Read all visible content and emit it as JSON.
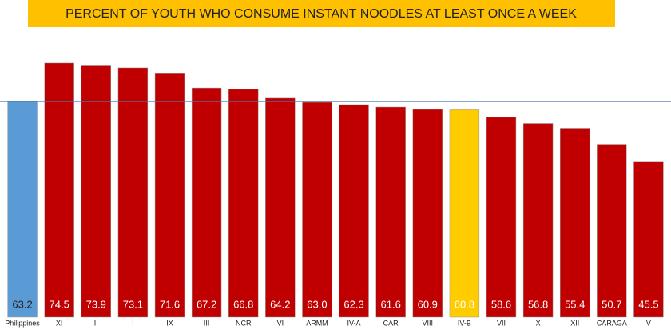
{
  "chart_data": {
    "type": "bar",
    "title": "PERCENT OF YOUTH WHO CONSUME INSTANT NOODLES AT LEAST ONCE A WEEK",
    "categories": [
      "Philippines",
      "XI",
      "II",
      "I",
      "IX",
      "III",
      "NCR",
      "VI",
      "ARMM",
      "IV-A",
      "CAR",
      "VIII",
      "IV-B",
      "VII",
      "X",
      "XII",
      "CARAGA",
      "V"
    ],
    "values": [
      63.2,
      74.5,
      73.9,
      73.1,
      71.6,
      67.2,
      66.8,
      64.2,
      63.0,
      62.3,
      61.6,
      60.9,
      60.8,
      58.6,
      56.8,
      55.4,
      50.7,
      45.5
    ],
    "value_labels": [
      "63.2",
      "74.5",
      "73.9",
      "73.1",
      "71.6",
      "67.2",
      "66.8",
      "64.2",
      "63.0",
      "62.3",
      "61.6",
      "60.9",
      "60.8",
      "58.6",
      "56.8",
      "55.4",
      "50.7",
      "45.5"
    ],
    "colors": [
      "#5b9bd5",
      "#c00000",
      "#c00000",
      "#c00000",
      "#c00000",
      "#c00000",
      "#c00000",
      "#c00000",
      "#c00000",
      "#c00000",
      "#c00000",
      "#c00000",
      "#ffcc00",
      "#c00000",
      "#c00000",
      "#c00000",
      "#c00000",
      "#c00000"
    ],
    "ylim": [
      0,
      78
    ]
  }
}
